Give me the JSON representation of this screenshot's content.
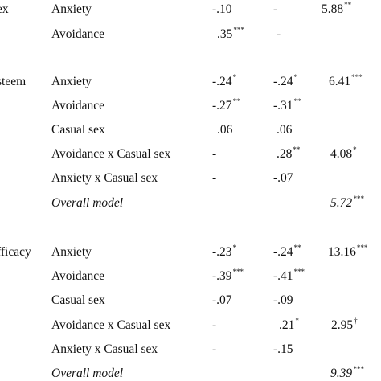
{
  "rows": [
    {
      "group": "ex",
      "predictor": "Anxiety",
      "b1": "-.10",
      "b1_sig": "",
      "b2": "-",
      "b2_sig": "",
      "stat": "5.88",
      "stat_sig": "**"
    },
    {
      "group": "",
      "predictor": "Avoidance",
      "b1": ".35",
      "b1_sig": "***",
      "b2": "-",
      "b2_sig": "",
      "stat": "",
      "stat_sig": ""
    },
    {
      "group": "steem",
      "predictor": "Anxiety",
      "b1": "-.24",
      "b1_sig": "*",
      "b2": "-.24",
      "b2_sig": "*",
      "stat": "6.41",
      "stat_sig": "***"
    },
    {
      "group": "",
      "predictor": "Avoidance",
      "b1": "-.27",
      "b1_sig": "**",
      "b2": "-.31",
      "b2_sig": "**",
      "stat": "",
      "stat_sig": ""
    },
    {
      "group": "",
      "predictor": "Casual sex",
      "b1": ".06",
      "b1_sig": "",
      "b2": ".06",
      "b2_sig": "",
      "stat": "",
      "stat_sig": ""
    },
    {
      "group": "",
      "predictor": "Avoidance x Casual sex",
      "b1": "-",
      "b1_sig": "",
      "b2": ".28",
      "b2_sig": "**",
      "stat": "4.08",
      "stat_sig": "*"
    },
    {
      "group": "",
      "predictor": "Anxiety x Casual sex",
      "b1": "-",
      "b1_sig": "",
      "b2": "-.07",
      "b2_sig": "",
      "stat": "",
      "stat_sig": ""
    },
    {
      "group": "",
      "predictor": "Overall model",
      "b1": "",
      "b1_sig": "",
      "b2": "",
      "b2_sig": "",
      "stat": "5.72",
      "stat_sig": "***"
    },
    {
      "group": "fficacy",
      "predictor": "Anxiety",
      "b1": "-.23",
      "b1_sig": "*",
      "b2": "-.24",
      "b2_sig": "**",
      "stat": "13.16",
      "stat_sig": "***"
    },
    {
      "group": "",
      "predictor": "Avoidance",
      "b1": "-.39",
      "b1_sig": "***",
      "b2": "-.41",
      "b2_sig": "***",
      "stat": "",
      "stat_sig": ""
    },
    {
      "group": "",
      "predictor": "Casual sex",
      "b1": "-.07",
      "b1_sig": "",
      "b2": "-.09",
      "b2_sig": "",
      "stat": "",
      "stat_sig": ""
    },
    {
      "group": "",
      "predictor": "Avoidance x Casual sex",
      "b1": "-",
      "b1_sig": "",
      "b2": ".21",
      "b2_sig": "*",
      "stat": "2.95",
      "stat_sig": "†"
    },
    {
      "group": "",
      "predictor": "Anxiety x Casual sex",
      "b1": "-",
      "b1_sig": "",
      "b2": "-.15",
      "b2_sig": "",
      "stat": "",
      "stat_sig": ""
    },
    {
      "group": "",
      "predictor": "Overall model",
      "b1": "",
      "b1_sig": "",
      "b2": "",
      "b2_sig": "",
      "stat": "9.39",
      "stat_sig": "***"
    }
  ]
}
